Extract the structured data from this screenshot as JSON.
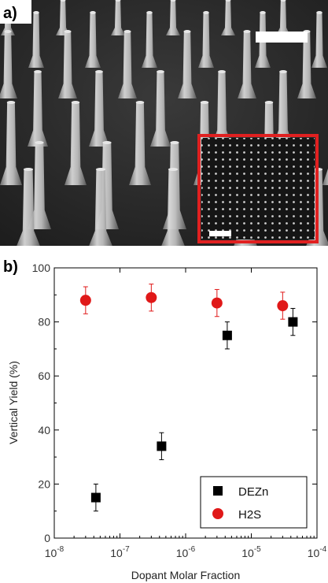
{
  "panel_a": {
    "label": "a)",
    "description_colors": {
      "background": "#2a2a2a",
      "wire": "#b8b8b8",
      "inset_border": "#e02020"
    }
  },
  "panel_b": {
    "label": "b)"
  },
  "chart_data": {
    "type": "scatter",
    "title": "",
    "xlabel": "Dopant Molar Fraction",
    "ylabel": "Vertical Yield (%)",
    "xscale": "log",
    "xlim": [
      1e-08,
      0.0001
    ],
    "ylim": [
      0,
      100
    ],
    "x_ticks": [
      {
        "value": 1e-08,
        "base": "10",
        "exp": "-8"
      },
      {
        "value": 1e-07,
        "base": "10",
        "exp": "-7"
      },
      {
        "value": 1e-06,
        "base": "10",
        "exp": "-6"
      },
      {
        "value": 1e-05,
        "base": "10",
        "exp": "-5"
      },
      {
        "value": 0.0001,
        "base": "10",
        "exp": "-4"
      }
    ],
    "y_ticks": [
      {
        "value": 0,
        "label": "0"
      },
      {
        "value": 20,
        "label": "20"
      },
      {
        "value": 40,
        "label": "40"
      },
      {
        "value": 60,
        "label": "60"
      },
      {
        "value": 80,
        "label": "80"
      },
      {
        "value": 100,
        "label": "100"
      }
    ],
    "legend_position": "bottom-right",
    "series": [
      {
        "name": "DEZn",
        "marker": "square",
        "color": "#000000",
        "points": [
          {
            "x": 4.3e-08,
            "y": 15,
            "err": 5
          },
          {
            "x": 4.3e-07,
            "y": 34,
            "err": 5
          },
          {
            "x": 4.3e-06,
            "y": 75,
            "err": 5
          },
          {
            "x": 4.3e-05,
            "y": 80,
            "err": 5
          }
        ]
      },
      {
        "name": "H2S",
        "marker": "circle",
        "color": "#e01818",
        "points": [
          {
            "x": 3e-08,
            "y": 88,
            "err": 5
          },
          {
            "x": 3e-07,
            "y": 89,
            "err": 5
          },
          {
            "x": 3e-06,
            "y": 87,
            "err": 5
          },
          {
            "x": 3e-05,
            "y": 86,
            "err": 5
          }
        ]
      }
    ]
  }
}
